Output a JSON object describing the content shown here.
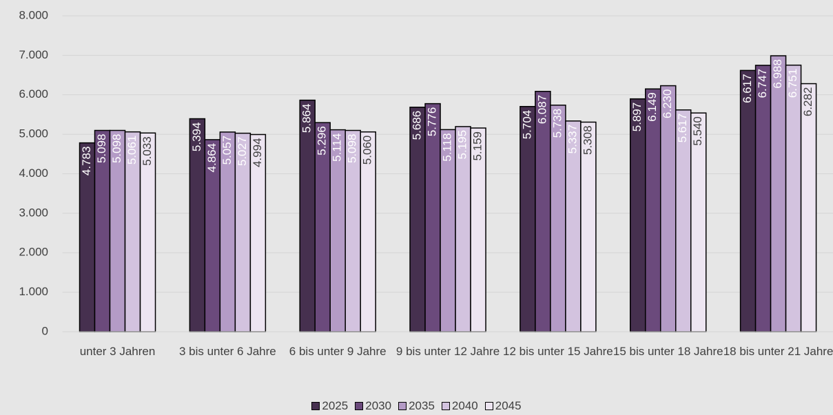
{
  "chart_data": {
    "type": "bar",
    "categories": [
      "unter 3 Jahren",
      "3 bis unter 6 Jahre",
      "6 bis unter 9 Jahre",
      "9 bis unter 12 Jahre",
      "12 bis unter 15 Jahre",
      "15 bis unter 18 Jahre",
      "18 bis unter 21 Jahre"
    ],
    "series": [
      {
        "name": "2025",
        "color": "#46304f",
        "values": [
          4783,
          5394,
          5864,
          5686,
          5704,
          5897,
          6617
        ],
        "value_labels": [
          "4.783",
          "5.394",
          "5.864",
          "5.686",
          "5.704",
          "5.897",
          "6.617"
        ]
      },
      {
        "name": "2030",
        "color": "#6b4a7c",
        "values": [
          5098,
          4864,
          5296,
          5776,
          6087,
          6149,
          6747
        ],
        "value_labels": [
          "5.098",
          "4.864",
          "5.296",
          "5.776",
          "6.087",
          "6.149",
          "6.747"
        ]
      },
      {
        "name": "2035",
        "color": "#b49bc6",
        "values": [
          5098,
          5057,
          5114,
          5118,
          5738,
          6230,
          6988
        ],
        "value_labels": [
          "5.098",
          "5.057",
          "5.114",
          "5.118",
          "5.738",
          "6.230",
          "6.988"
        ]
      },
      {
        "name": "2040",
        "color": "#d3c3df",
        "values": [
          5061,
          5027,
          5098,
          5195,
          5337,
          5617,
          6751
        ],
        "value_labels": [
          "5.061",
          "5.027",
          "5.098",
          "5.195",
          "5.337",
          "5.617",
          "6.751"
        ]
      },
      {
        "name": "2045",
        "color": "#ede5f1",
        "values": [
          5033,
          4994,
          5060,
          5159,
          5308,
          5540,
          6282
        ],
        "value_labels": [
          "5.033",
          "4.994",
          "5.060",
          "5.159",
          "5.308",
          "5.540",
          "6.282"
        ]
      }
    ],
    "ylim": [
      0,
      8000
    ],
    "yticks": [
      0,
      {
        "value": 1000,
        "label": "1.000"
      },
      {
        "value": 2000,
        "label": "2.000"
      },
      {
        "value": 3000,
        "label": "3.000"
      },
      {
        "value": 4000,
        "label": "4.000"
      },
      {
        "value": 5000,
        "label": "5.000"
      },
      {
        "value": 6000,
        "label": "6.000"
      },
      {
        "value": 7000,
        "label": "7.000"
      },
      {
        "value": 8000,
        "label": "8.000"
      }
    ],
    "grid": true,
    "legend": "bottom"
  }
}
